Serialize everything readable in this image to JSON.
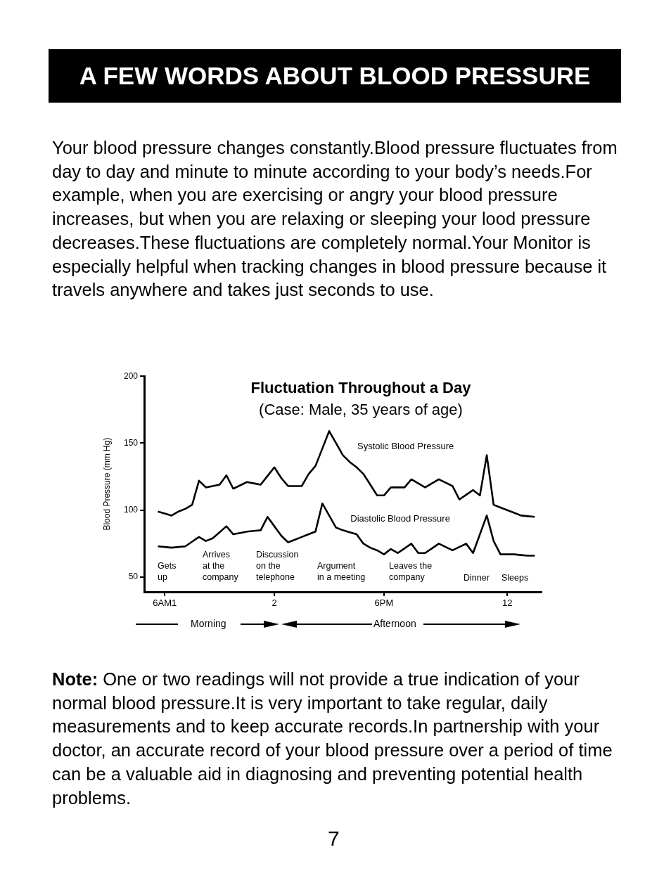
{
  "chart_data": {
    "type": "line",
    "title": "Fluctuation Throughout a Day",
    "subtitle": "(Case: Male, 35 years of age)",
    "ylabel": "Blood Pressure (mm Hg)",
    "categories": [
      null,
      null,
      null,
      "6AM1",
      null,
      null,
      null,
      null,
      null,
      null,
      null,
      null,
      null,
      null,
      null,
      null,
      null,
      null,
      null,
      "2",
      null,
      null,
      null,
      null,
      null,
      null,
      null,
      null,
      null,
      null,
      null,
      null,
      null,
      null,
      null,
      "6PM",
      null,
      null,
      null,
      null,
      null,
      null,
      null,
      null,
      null,
      null,
      null,
      null,
      null,
      null,
      null,
      null,
      null,
      "12",
      null,
      null,
      null,
      null,
      null
    ],
    "ylim": [
      39,
      200
    ],
    "yticks": [
      50,
      100,
      150,
      200
    ],
    "grid": false,
    "legend": false,
    "marker": "none",
    "line_style": "solid",
    "series": [
      {
        "name": "Systolic Blood Pressure",
        "color": "#000000",
        "values": [
          null,
          null,
          99,
          97.5,
          96,
          99,
          101,
          104,
          122,
          117,
          118,
          119,
          126,
          116,
          118.5,
          121,
          120,
          119,
          125.5,
          132,
          124,
          118,
          118,
          118,
          127,
          133,
          146,
          159,
          150,
          141,
          136,
          132,
          127,
          119,
          111,
          111,
          117,
          117,
          117,
          123,
          120,
          117,
          120,
          123,
          120.5,
          118,
          108,
          111.5,
          115,
          111,
          141,
          104,
          102,
          100,
          98,
          96,
          95.5,
          95,
          null
        ]
      },
      {
        "name": "Diastolic Blood Pressure",
        "color": "#000000",
        "values": [
          null,
          null,
          73,
          72.5,
          72,
          72.5,
          73,
          76.5,
          80,
          77,
          79,
          83.5,
          88,
          82,
          83,
          84,
          84.5,
          85,
          95,
          88,
          81,
          76,
          78,
          80,
          82,
          84,
          105,
          96,
          87,
          85,
          83.5,
          82,
          75,
          72,
          70,
          67,
          71,
          68,
          71.5,
          75,
          68,
          68,
          71.5,
          75,
          72.5,
          70,
          72.5,
          75,
          68,
          82,
          96,
          77,
          67,
          67,
          67,
          66.5,
          66,
          66,
          null
        ]
      }
    ],
    "annotations": [
      "A FEW WORDS ABOUT BLOOD PRESSURE",
      "Your blood pressure changes constantly.Blood pressure fluctuates from day to day and minute to minute according to your body’s needs.For example, when you are exercising or angry your blood pressure increases, but when you are relaxing or sleeping your lood pressure decreases.These fluctuations are completely normal.Your Monitor is especially helpful when tracking changes in blood pressure because it travels anywhere and takes just seconds to use.",
      "Morning",
      "Afternoon",
      "Note: One or two readings will not provide a true indication of your normal blood pressure.It is very important to take regular, daily measurements and to keep accurate records.In partnership with your doctor, an accurate record of your blood pressure over a period of time can be a valuable aid in diagnosing and preventing potential health problems.",
      "7",
      "Gets\nup",
      "Arrives\nat the\ncompany",
      "Discussion\non the\ntelephone",
      "Argument\nin a meeting",
      "Leaves the\ncompany",
      "Dinner",
      "Sleeps"
    ]
  }
}
